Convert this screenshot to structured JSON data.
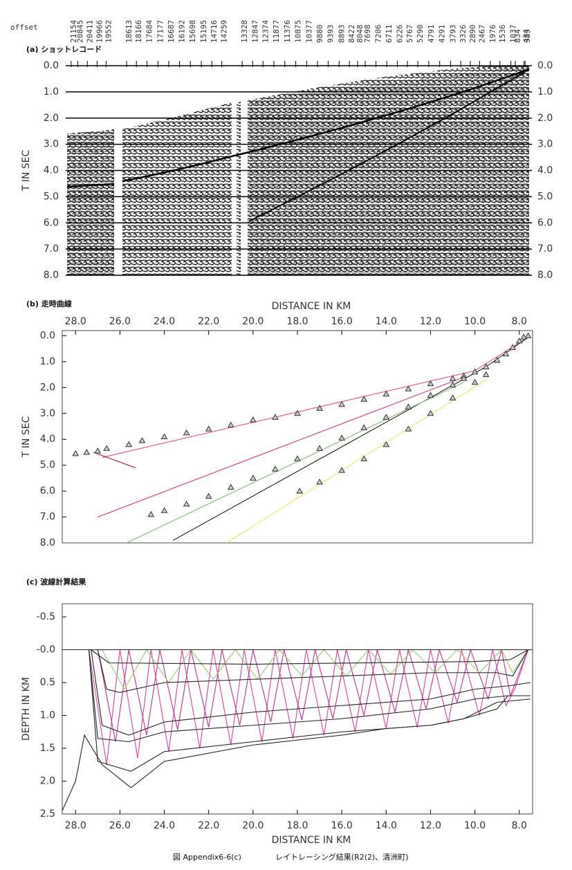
{
  "chart_data": [
    {
      "type": "seismic",
      "title": "(a) ショットレコード",
      "ylabel": "T IN SEC",
      "xlabel": "offset",
      "xlim": [
        21400,
        200
      ],
      "xticks": [
        21154,
        20845,
        20411,
        19966,
        19552,
        18613,
        18166,
        17684,
        17177,
        16687,
        16192,
        15698,
        15195,
        14716,
        14259,
        13328,
        12847,
        12374,
        11877,
        11376,
        10875,
        10377,
        9880,
        9393,
        8893,
        8422,
        8048,
        7698,
        7206,
        6711,
        6226,
        5767,
        5290,
        4791,
        4291,
        3793,
        3326,
        2890,
        2467,
        1976,
        1536,
        1037,
        834,
        434,
        383
      ],
      "ylim": [
        0,
        8
      ],
      "invert_y": true,
      "grid": true,
      "yticks": [
        {
          "value": 0,
          "label": "0.0"
        },
        {
          "value": 1,
          "label": "1.0"
        },
        {
          "value": 2,
          "label": "2.0"
        },
        {
          "value": 3,
          "label": "3.0"
        },
        {
          "value": 4,
          "label": "4.0"
        },
        {
          "value": 5,
          "label": "5.0"
        },
        {
          "value": 6,
          "label": "6.0"
        },
        {
          "value": 7,
          "label": "7.0"
        },
        {
          "value": 8,
          "label": "8.0"
        }
      ]
    },
    {
      "type": "line",
      "title": "(b) 走時曲線",
      "xlabel": "DISTANCE IN KM",
      "ylabel": "T IN SEC",
      "xlim": [
        28.6,
        7.4
      ],
      "ylim": [
        -0.2,
        8
      ],
      "invert_y": true,
      "grid": false,
      "xticks": [
        {
          "value": 28,
          "label": "28.0"
        },
        {
          "value": 26,
          "label": "26.0"
        },
        {
          "value": 24,
          "label": "24.0"
        },
        {
          "value": 22,
          "label": "22.0"
        },
        {
          "value": 20,
          "label": "20.0"
        },
        {
          "value": 18,
          "label": "18.0"
        },
        {
          "value": 16,
          "label": "16.0"
        },
        {
          "value": 14,
          "label": "14.0"
        },
        {
          "value": 12,
          "label": "12.0"
        },
        {
          "value": 10,
          "label": "10.0"
        },
        {
          "value": 8,
          "label": "8.0"
        }
      ],
      "yticks": [
        {
          "value": 0,
          "label": "0.0"
        },
        {
          "value": 1,
          "label": "1.0"
        },
        {
          "value": 2,
          "label": "2.0"
        },
        {
          "value": 3,
          "label": "3.0"
        },
        {
          "value": 4,
          "label": "4.0"
        },
        {
          "value": 5,
          "label": "5.0"
        },
        {
          "value": 6,
          "label": "6.0"
        },
        {
          "value": 7,
          "label": "7.0"
        },
        {
          "value": 8,
          "label": "8.0"
        }
      ],
      "series": [
        {
          "color": "#e0508a",
          "x": [
            7.5,
            10,
            26.8
          ],
          "values": [
            0,
            1.35,
            4.7
          ]
        },
        {
          "color": "#b0202a",
          "x": [
            27.2,
            25.3
          ],
          "values": [
            4.5,
            5.1
          ]
        },
        {
          "color": "#d0407a",
          "x": [
            10.5,
            27
          ],
          "values": [
            1.6,
            7
          ]
        },
        {
          "color": "#222222",
          "x": [
            7.5,
            9.5,
            23.6
          ],
          "values": [
            0,
            1.2,
            7.9
          ]
        },
        {
          "color": "#80c070",
          "x": [
            10.5,
            25.7
          ],
          "values": [
            1.8,
            8
          ]
        },
        {
          "color": "#e8e860",
          "x": [
            9.5,
            21.2
          ],
          "values": [
            1.7,
            8
          ]
        },
        {
          "color": "#333333",
          "marker": "triangle",
          "x": [
            7.6,
            7.8,
            8,
            8.3,
            8.6,
            9,
            9.5,
            10,
            10.5,
            11,
            12,
            13,
            14,
            15,
            16,
            17,
            18,
            19,
            20,
            21,
            22,
            23,
            24,
            25,
            25.6,
            26.6,
            27,
            27.5,
            28
          ],
          "values": [
            0,
            0.05,
            0.2,
            0.45,
            0.7,
            0.95,
            1.2,
            1.4,
            1.55,
            1.65,
            1.85,
            2.05,
            2.25,
            2.45,
            2.65,
            2.8,
            3,
            3.15,
            3.25,
            3.45,
            3.6,
            3.75,
            3.9,
            4.05,
            4.2,
            4.35,
            4.45,
            4.5,
            4.55
          ]
        },
        {
          "color": "#333333",
          "marker": "triangle",
          "x": [
            10.5,
            11,
            12,
            13,
            14,
            15,
            16,
            17,
            18,
            19,
            20,
            21,
            22,
            23,
            24,
            24.6
          ],
          "values": [
            1.65,
            1.9,
            2.3,
            2.75,
            3.15,
            3.55,
            3.95,
            4.35,
            4.75,
            5.15,
            5.5,
            5.85,
            6.2,
            6.5,
            6.75,
            6.9
          ]
        },
        {
          "color": "#333333",
          "marker": "triangle",
          "x": [
            9.5,
            10,
            11,
            12,
            13,
            14,
            15,
            16,
            17,
            17.9
          ],
          "values": [
            1.5,
            1.8,
            2.4,
            3,
            3.6,
            4.2,
            4.75,
            5.2,
            5.65,
            6
          ]
        }
      ]
    },
    {
      "type": "line",
      "title": "(c) 波線計算結果",
      "xlabel": "DISTANCE IN KM",
      "ylabel": "DEPTH IN KM",
      "xlim": [
        28.6,
        7.4
      ],
      "ylim": [
        -0.7,
        2.5
      ],
      "invert_y": true,
      "grid": false,
      "xticks": [
        {
          "value": 28,
          "label": "28.0"
        },
        {
          "value": 26,
          "label": "26.0"
        },
        {
          "value": 24,
          "label": "24.0"
        },
        {
          "value": 22,
          "label": "22.0"
        },
        {
          "value": 20,
          "label": "20.0"
        },
        {
          "value": 18,
          "label": "18.0"
        },
        {
          "value": 16,
          "label": "16.0"
        },
        {
          "value": 14,
          "label": "14.0"
        },
        {
          "value": 12,
          "label": "12.0"
        },
        {
          "value": 10,
          "label": "10.0"
        },
        {
          "value": 8,
          "label": "8.0"
        }
      ],
      "yticks": [
        -0.5,
        {
          "value": 0,
          "label": "-0.0"
        },
        0.5,
        {
          "value": 1,
          "label": "1.0"
        },
        1.5,
        {
          "value": 2,
          "label": "2.0"
        },
        2.5
      ],
      "series": [
        {
          "color": "#e040a0",
          "x": [
            27.4,
            26.6,
            26,
            25.2,
            24.6,
            23.8,
            23.2,
            22.4,
            21.8,
            21,
            20.4,
            19.6,
            19,
            18.2,
            17.6,
            16.8,
            16.2,
            15.4,
            14.8,
            14,
            13.4,
            12.6,
            12,
            11.2,
            10.6,
            9.8,
            9.2,
            8.6,
            8.2,
            7.6
          ],
          "values": [
            0,
            1.75,
            0,
            1.65,
            0,
            1.55,
            0,
            1.5,
            0,
            1.45,
            0,
            1.4,
            0,
            1.35,
            0,
            1.3,
            0,
            1.25,
            0,
            1.2,
            0,
            1.18,
            0,
            1.12,
            0,
            1,
            0,
            0.85,
            0.6,
            0
          ]
        },
        {
          "color": "#c03090",
          "x": [
            27,
            26.2,
            25.6,
            24.8,
            24.2,
            23.4,
            22.8,
            22,
            21.4,
            20.6,
            20,
            19.2,
            18.6,
            17.8,
            17.2,
            16.4,
            15.8,
            15,
            14.4,
            13.6,
            13,
            12.2,
            11.6,
            10.8,
            10.2,
            9.4,
            8.8,
            8.4,
            7.6
          ],
          "values": [
            0,
            1.4,
            0,
            1.3,
            0,
            1.22,
            0,
            1.18,
            0,
            1.15,
            0,
            1.1,
            0,
            1.07,
            0,
            1.05,
            0,
            1,
            0,
            0.95,
            0,
            0.9,
            0,
            0.8,
            0,
            0.75,
            0,
            0.7,
            0
          ]
        },
        {
          "color": "#90d070",
          "x": [
            26.8,
            25.8,
            24.8,
            23.8,
            22.8,
            21.8,
            20.8,
            19.8,
            18.8,
            17.8,
            16.8,
            15.8,
            14.8,
            13.8,
            12.8,
            11.8,
            10.8,
            9.8,
            8.8,
            8.3,
            7.6
          ],
          "values": [
            0,
            0.6,
            0,
            0.5,
            0,
            0.45,
            0,
            0.45,
            0,
            0.4,
            0,
            0.4,
            0,
            0.37,
            0,
            0.35,
            0,
            0.35,
            0,
            0.35,
            0
          ]
        },
        {
          "color": "#222222",
          "x": [
            28.6,
            27.3,
            20,
            12,
            8,
            7.6,
            7.4
          ],
          "values": [
            0,
            0,
            0,
            0,
            0,
            0,
            0
          ]
        },
        {
          "color": "#222222",
          "x": [
            27.3,
            26.5,
            20,
            10,
            8.4,
            7.6
          ],
          "values": [
            0,
            0.2,
            0.22,
            0.18,
            0.15,
            0
          ]
        },
        {
          "color": "#222222",
          "x": [
            27,
            26.6,
            26,
            24,
            20,
            16,
            12,
            9,
            8.3,
            7.6
          ],
          "values": [
            0,
            0.6,
            0.65,
            0.5,
            0.45,
            0.4,
            0.35,
            0.35,
            0.4,
            0
          ]
        },
        {
          "color": "#222222",
          "x": [
            27.3,
            26.8,
            25.6,
            24,
            20,
            16,
            12,
            10,
            8.5,
            7.5
          ],
          "values": [
            0,
            1.15,
            1.3,
            1.1,
            0.95,
            0.85,
            0.75,
            0.6,
            0.55,
            0.5
          ]
        },
        {
          "color": "#222222",
          "x": [
            27.4,
            27,
            25.6,
            24,
            20,
            16,
            12,
            10,
            8.5,
            7.5
          ],
          "values": [
            0,
            1.35,
            1.4,
            1.25,
            1.15,
            1.05,
            0.9,
            0.75,
            0.7,
            0.7
          ]
        },
        {
          "color": "#222222",
          "x": [
            27.4,
            27,
            25.5,
            24,
            20,
            16,
            14,
            12,
            10.5,
            9,
            7.5
          ],
          "values": [
            0,
            1.7,
            1.85,
            1.55,
            1.4,
            1.25,
            1.2,
            1.15,
            1.05,
            0.8,
            0.75
          ]
        },
        {
          "color": "#222222",
          "x": [
            28.6,
            28,
            27.6,
            26.8,
            25.5,
            24,
            20,
            16,
            14,
            12,
            10.5,
            9,
            8.5,
            7.5
          ],
          "values": [
            2.45,
            2,
            1.3,
            1.75,
            2.1,
            1.7,
            1.45,
            1.3,
            1.2,
            1.15,
            1.05,
            0.9,
            0.7,
            0.7
          ]
        }
      ]
    }
  ],
  "caption": [
    "図 Appendix6-6(c)",
    "レイトレーシング結果(R2(2)、清洲町)"
  ]
}
